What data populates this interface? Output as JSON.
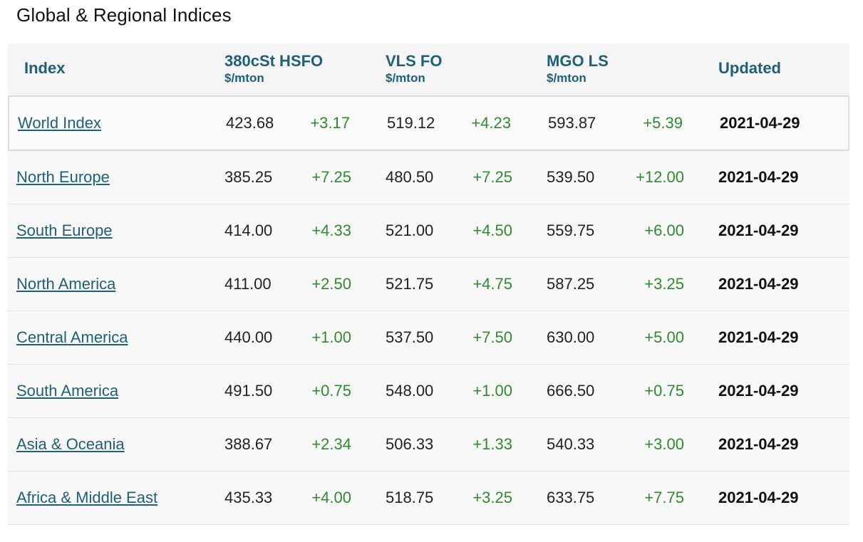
{
  "title": "Global & Regional Indices",
  "headers": {
    "index": "Index",
    "hsfo": "380cSt HSFO",
    "hsfo_unit": "$/mton",
    "vlsfo": "VLS FO",
    "vlsfo_unit": "$/mton",
    "mgo": "MGO LS",
    "mgo_unit": "$/mton",
    "updated": "Updated"
  },
  "rows": [
    {
      "name": "World Index",
      "hsfo": "423.68",
      "hsfo_chg": "+3.17",
      "vlsfo": "519.12",
      "vlsfo_chg": "+4.23",
      "mgo": "593.87",
      "mgo_chg": "+5.39",
      "updated": "2021-04-29"
    },
    {
      "name": "North Europe",
      "hsfo": "385.25",
      "hsfo_chg": "+7.25",
      "vlsfo": "480.50",
      "vlsfo_chg": "+7.25",
      "mgo": "539.50",
      "mgo_chg": "+12.00",
      "updated": "2021-04-29"
    },
    {
      "name": "South Europe",
      "hsfo": "414.00",
      "hsfo_chg": "+4.33",
      "vlsfo": "521.00",
      "vlsfo_chg": "+4.50",
      "mgo": "559.75",
      "mgo_chg": "+6.00",
      "updated": "2021-04-29"
    },
    {
      "name": "North America",
      "hsfo": "411.00",
      "hsfo_chg": "+2.50",
      "vlsfo": "521.75",
      "vlsfo_chg": "+4.75",
      "mgo": "587.25",
      "mgo_chg": "+3.25",
      "updated": "2021-04-29"
    },
    {
      "name": "Central America",
      "hsfo": "440.00",
      "hsfo_chg": "+1.00",
      "vlsfo": "537.50",
      "vlsfo_chg": "+7.50",
      "mgo": "630.00",
      "mgo_chg": "+5.00",
      "updated": "2021-04-29"
    },
    {
      "name": "South America",
      "hsfo": "491.50",
      "hsfo_chg": "+0.75",
      "vlsfo": "548.00",
      "vlsfo_chg": "+1.00",
      "mgo": "666.50",
      "mgo_chg": "+0.75",
      "updated": "2021-04-29"
    },
    {
      "name": "Asia & Oceania",
      "hsfo": "388.67",
      "hsfo_chg": "+2.34",
      "vlsfo": "506.33",
      "vlsfo_chg": "+1.33",
      "mgo": "540.33",
      "mgo_chg": "+3.00",
      "updated": "2021-04-29"
    },
    {
      "name": "Africa & Middle East",
      "hsfo": "435.33",
      "hsfo_chg": "+4.00",
      "vlsfo": "518.75",
      "vlsfo_chg": "+3.25",
      "mgo": "633.75",
      "mgo_chg": "+7.75",
      "updated": "2021-04-29"
    }
  ],
  "colors": {
    "link": "#1e5f7a",
    "header_text": "#1e5f7a",
    "positive_change": "#2e8b2e",
    "row_background": "#f8f8f8"
  }
}
